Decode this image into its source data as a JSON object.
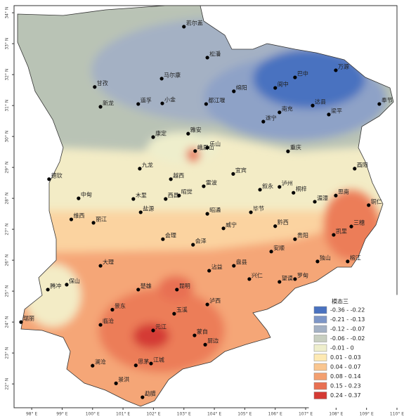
{
  "map": {
    "xlim": [
      97.42,
      110
    ],
    "ylim": [
      21.23,
      34.23
    ],
    "xticks": [
      {
        "value": 98,
        "label": "98° E"
      },
      {
        "value": 99,
        "label": "99° E"
      },
      {
        "value": 100,
        "label": "100° E"
      },
      {
        "value": 101,
        "label": "101° E"
      },
      {
        "value": 102,
        "label": "102° E"
      },
      {
        "value": 103,
        "label": "103° E"
      },
      {
        "value": 104,
        "label": "104° E"
      },
      {
        "value": 105,
        "label": "105° E"
      },
      {
        "value": 106,
        "label": "106° E"
      },
      {
        "value": 107,
        "label": "107° E"
      },
      {
        "value": 108,
        "label": "108° E"
      },
      {
        "value": 109,
        "label": "109° E"
      },
      {
        "value": 110,
        "label": "110° E"
      }
    ],
    "yticks": [
      {
        "value": 22,
        "label": "22° N"
      },
      {
        "value": 23,
        "label": "23° N"
      },
      {
        "value": 24,
        "label": "24° N"
      },
      {
        "value": 25,
        "label": "25° N"
      },
      {
        "value": 26,
        "label": "26° N"
      },
      {
        "value": 27,
        "label": "27° N"
      },
      {
        "value": 28,
        "label": "28° N"
      },
      {
        "value": 29,
        "label": "29° N"
      },
      {
        "value": 30,
        "label": "30° N"
      },
      {
        "value": 31,
        "label": "31° N"
      },
      {
        "value": 32,
        "label": "32° N"
      },
      {
        "value": 33,
        "label": "33° N"
      },
      {
        "value": 34,
        "label": "34° N"
      }
    ],
    "legend": {
      "title": "模态三",
      "items": [
        {
          "label": "-0.36 - -0.22",
          "color": "#4a72c0"
        },
        {
          "label": "-0.21 - -0.13",
          "color": "#7d96c7"
        },
        {
          "label": "-0.12 - -0.07",
          "color": "#a4b1c4"
        },
        {
          "label": "-0.06 - -0.02",
          "color": "#c8cfc0"
        },
        {
          "label": "-0.01 - 0",
          "color": "#eeeecc"
        },
        {
          "label": "0.01 - 0.03",
          "color": "#fde9b3"
        },
        {
          "label": "0.04 - 0.07",
          "color": "#f9c690"
        },
        {
          "label": "0.08 - 0.14",
          "color": "#f3a070"
        },
        {
          "label": "0.15 - 0.23",
          "color": "#e87052"
        },
        {
          "label": "0.24 - 0.37",
          "color": "#d43a34"
        }
      ]
    },
    "stations": [
      {
        "name": "若尔盖",
        "lon": 103.0,
        "lat": 33.55
      },
      {
        "name": "松潘",
        "lon": 103.77,
        "lat": 32.55
      },
      {
        "name": "马尔康",
        "lon": 102.27,
        "lat": 31.87
      },
      {
        "name": "甘孜",
        "lon": 100.07,
        "lat": 31.6
      },
      {
        "name": "新龙",
        "lon": 100.26,
        "lat": 30.96
      },
      {
        "name": "道孚",
        "lon": 101.5,
        "lat": 31.05
      },
      {
        "name": "小金",
        "lon": 102.29,
        "lat": 31.07
      },
      {
        "name": "都江堰",
        "lon": 103.73,
        "lat": 31.05
      },
      {
        "name": "绵阳",
        "lon": 104.64,
        "lat": 31.46
      },
      {
        "name": "巴中",
        "lon": 106.65,
        "lat": 31.91
      },
      {
        "name": "万源",
        "lon": 107.99,
        "lat": 32.14
      },
      {
        "name": "阆中",
        "lon": 106.0,
        "lat": 31.57
      },
      {
        "name": "南充",
        "lon": 106.14,
        "lat": 30.78
      },
      {
        "name": "达县",
        "lon": 107.23,
        "lat": 31.0
      },
      {
        "name": "梁平",
        "lon": 107.76,
        "lat": 30.71
      },
      {
        "name": "奉节",
        "lon": 109.42,
        "lat": 31.05
      },
      {
        "name": "遂宁",
        "lon": 105.61,
        "lat": 30.48
      },
      {
        "name": "康定",
        "lon": 101.99,
        "lat": 29.98
      },
      {
        "name": "雅安",
        "lon": 103.14,
        "lat": 30.09
      },
      {
        "name": "峨眉山",
        "lon": 103.37,
        "lat": 29.53
      },
      {
        "name": "乐山",
        "lon": 103.77,
        "lat": 29.64
      },
      {
        "name": "重庆",
        "lon": 106.42,
        "lat": 29.52
      },
      {
        "name": "九龙",
        "lon": 101.55,
        "lat": 28.96
      },
      {
        "name": "越西",
        "lon": 102.57,
        "lat": 28.62
      },
      {
        "name": "宜宾",
        "lon": 104.62,
        "lat": 28.79
      },
      {
        "name": "叙永",
        "lon": 105.5,
        "lat": 28.28
      },
      {
        "name": "泸州",
        "lon": 106.14,
        "lat": 28.37
      },
      {
        "name": "酉阳",
        "lon": 108.61,
        "lat": 28.96
      },
      {
        "name": "德钦",
        "lon": 98.57,
        "lat": 28.62
      },
      {
        "name": "木里",
        "lon": 101.34,
        "lat": 27.98
      },
      {
        "name": "西昌",
        "lon": 102.4,
        "lat": 27.98
      },
      {
        "name": "昭觉",
        "lon": 102.84,
        "lat": 28.09
      },
      {
        "name": "雷波",
        "lon": 103.65,
        "lat": 28.39
      },
      {
        "name": "桐梓",
        "lon": 106.6,
        "lat": 28.18
      },
      {
        "name": "思南",
        "lon": 107.99,
        "lat": 28.09
      },
      {
        "name": "湄潭",
        "lon": 107.3,
        "lat": 27.89
      },
      {
        "name": "铜仁",
        "lon": 109.07,
        "lat": 27.78
      },
      {
        "name": "中甸",
        "lon": 99.54,
        "lat": 28.0
      },
      {
        "name": "盐源",
        "lon": 101.58,
        "lat": 27.55
      },
      {
        "name": "维西",
        "lon": 99.3,
        "lat": 27.32
      },
      {
        "name": "丽江",
        "lon": 100.03,
        "lat": 27.21
      },
      {
        "name": "会理",
        "lon": 102.31,
        "lat": 26.68
      },
      {
        "name": "昭通",
        "lon": 103.77,
        "lat": 27.5
      },
      {
        "name": "威宁",
        "lon": 104.3,
        "lat": 27.03
      },
      {
        "name": "毕节",
        "lon": 105.2,
        "lat": 27.55
      },
      {
        "name": "黔西",
        "lon": 106.0,
        "lat": 27.1
      },
      {
        "name": "贵阳",
        "lon": 106.65,
        "lat": 26.68
      },
      {
        "name": "凯里",
        "lon": 107.92,
        "lat": 26.82
      },
      {
        "name": "三穗",
        "lon": 108.5,
        "lat": 27.09
      },
      {
        "name": "会泽",
        "lon": 103.3,
        "lat": 26.5
      },
      {
        "name": "盘县",
        "lon": 104.64,
        "lat": 25.82
      },
      {
        "name": "安顺",
        "lon": 105.87,
        "lat": 26.28
      },
      {
        "name": "独山",
        "lon": 107.39,
        "lat": 25.96
      },
      {
        "name": "榕江",
        "lon": 108.38,
        "lat": 25.96
      },
      {
        "name": "大理",
        "lon": 100.26,
        "lat": 25.82
      },
      {
        "name": "腾冲",
        "lon": 98.53,
        "lat": 25.05
      },
      {
        "name": "保山",
        "lon": 99.15,
        "lat": 25.21
      },
      {
        "name": "楚雄",
        "lon": 101.5,
        "lat": 25.05
      },
      {
        "name": "昆明",
        "lon": 102.77,
        "lat": 25.05
      },
      {
        "name": "沾益",
        "lon": 103.83,
        "lat": 25.66
      },
      {
        "name": "兴仁",
        "lon": 105.15,
        "lat": 25.39
      },
      {
        "name": "罗甸",
        "lon": 106.65,
        "lat": 25.39
      },
      {
        "name": "望谟",
        "lon": 106.14,
        "lat": 25.3
      },
      {
        "name": "泸西",
        "lon": 103.77,
        "lat": 24.57
      },
      {
        "name": "玉溪",
        "lon": 102.68,
        "lat": 24.27
      },
      {
        "name": "景东",
        "lon": 100.65,
        "lat": 24.4
      },
      {
        "name": "临沧",
        "lon": 100.26,
        "lat": 23.91
      },
      {
        "name": "瑞丽",
        "lon": 97.65,
        "lat": 24.0
      },
      {
        "name": "元江",
        "lon": 101.99,
        "lat": 23.73
      },
      {
        "name": "蒙自",
        "lon": 103.35,
        "lat": 23.57
      },
      {
        "name": "屏边",
        "lon": 103.7,
        "lat": 23.27
      },
      {
        "name": "思茅",
        "lon": 101.42,
        "lat": 22.6
      },
      {
        "name": "江城",
        "lon": 101.92,
        "lat": 22.66
      },
      {
        "name": "澜沧",
        "lon": 100.0,
        "lat": 22.59
      },
      {
        "name": "景洪",
        "lon": 100.77,
        "lat": 22.02
      },
      {
        "name": "勐腊",
        "lon": 101.64,
        "lat": 21.57
      }
    ]
  }
}
